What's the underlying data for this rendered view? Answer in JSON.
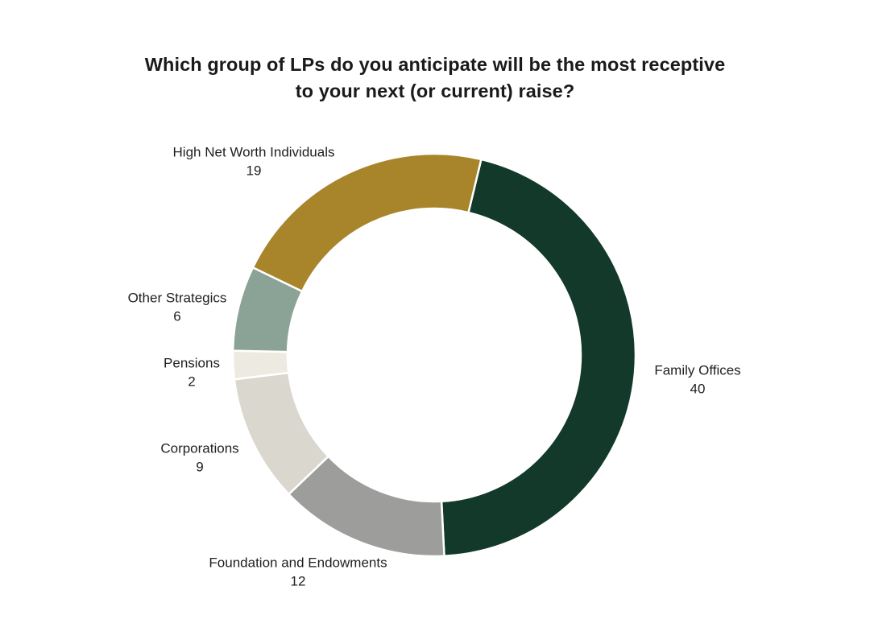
{
  "page": {
    "background_color": "#ffffff"
  },
  "title": {
    "full": "Which group of LPs do you anticipate will be the most receptive to your next (or current) raise?",
    "lines": [
      "Which group of LPs do you anticipate will be the most receptive",
      "to your next (or current) raise?"
    ]
  },
  "chart_data": {
    "type": "pie",
    "subtype": "donut",
    "title": "Which group of LPs do you anticipate will be the most receptive to your next (or current) raise?",
    "direction": "clockwise",
    "start_angle_deg": 13.5,
    "hole_ratio": 0.728,
    "label_position": "outside",
    "legend": "none",
    "slice_gap_color": "#ffffff",
    "segments": [
      {
        "label": "Family Offices",
        "value": 40,
        "color": "#13392b"
      },
      {
        "label": "Foundation and Endowments",
        "value": 12,
        "color": "#9d9d9b"
      },
      {
        "label": "Corporations",
        "value": 9,
        "color": "#dad7ce"
      },
      {
        "label": "Pensions",
        "value": 2,
        "color": "#edebe1"
      },
      {
        "label": "Other Strategics",
        "value": 6,
        "color": "#8ba296"
      },
      {
        "label": "High Net Worth Individuals",
        "value": 19,
        "color": "#a8842a"
      }
    ]
  }
}
